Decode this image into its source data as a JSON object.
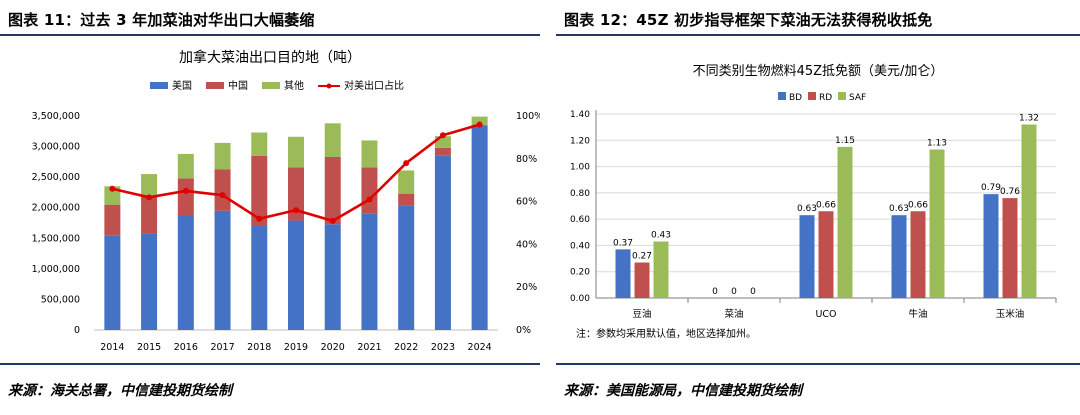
{
  "left": {
    "figure_title": "图表 11：过去 3 年加菜油对华出口大幅萎缩",
    "source": "来源：海关总署，中信建投期货绘制"
  },
  "right": {
    "figure_title": "图表 12：45Z 初步指导框架下菜油无法获得税收抵免",
    "source": "来源：美国能源局，中信建投期货绘制"
  },
  "colors": {
    "us": "#4472c4",
    "china": "#c0504d",
    "other": "#9bbb59",
    "ratio": "#e00000",
    "rule": "#1f3864"
  },
  "chart_data": [
    {
      "type": "bar",
      "stacked": true,
      "title": "加拿大菜油出口目的地（吨）",
      "categories": [
        "2014",
        "2015",
        "2016",
        "2017",
        "2018",
        "2019",
        "2020",
        "2021",
        "2022",
        "2023",
        "2024"
      ],
      "series": [
        {
          "name": "美国",
          "values": [
            1550000,
            1580000,
            1880000,
            1950000,
            1700000,
            1790000,
            1730000,
            1900000,
            2030000,
            2850000,
            3350000
          ]
        },
        {
          "name": "中国",
          "values": [
            500000,
            620000,
            600000,
            680000,
            1150000,
            870000,
            1100000,
            760000,
            200000,
            130000,
            0
          ]
        },
        {
          "name": "其他",
          "values": [
            300000,
            350000,
            400000,
            430000,
            380000,
            500000,
            550000,
            440000,
            380000,
            190000,
            140000
          ]
        }
      ],
      "line_series": {
        "name": "对美出口占比",
        "axis": "right",
        "values": [
          66,
          62,
          65,
          63,
          52,
          56,
          51,
          61,
          78,
          91,
          96
        ]
      },
      "yticks": [
        "0",
        "500,000",
        "1,000,000",
        "1,500,000",
        "2,000,000",
        "2,500,000",
        "3,000,000",
        "3,500,000"
      ],
      "y2ticks": [
        "0%",
        "20%",
        "40%",
        "60%",
        "80%",
        "100%"
      ],
      "ylim": [
        0,
        3500000
      ],
      "y2lim": [
        0,
        100
      ],
      "legend_position": "top"
    },
    {
      "type": "bar",
      "title": "不同类别生物燃料45Z抵免额（美元/加仑）",
      "categories": [
        "豆油",
        "菜油",
        "UCO",
        "牛油",
        "玉米油"
      ],
      "series": [
        {
          "name": "BD",
          "values": [
            0.37,
            0,
            0.63,
            0.63,
            0.79
          ]
        },
        {
          "name": "RD",
          "values": [
            0.27,
            0,
            0.66,
            0.66,
            0.76
          ]
        },
        {
          "name": "SAF",
          "values": [
            0.43,
            0,
            1.15,
            1.13,
            1.32
          ]
        }
      ],
      "data_labels": [
        [
          "0.37",
          "0",
          "0.63",
          "0.63",
          "0.79"
        ],
        [
          "0.27",
          "0",
          "0.66",
          "0.66",
          "0.76"
        ],
        [
          "0.43",
          "0",
          "1.15",
          "1.13",
          "1.32"
        ]
      ],
      "yticks": [
        "0.00",
        "0.20",
        "0.40",
        "0.60",
        "0.80",
        "1.00",
        "1.20",
        "1.40"
      ],
      "ylim": [
        0,
        1.4
      ],
      "legend_position": "top-left",
      "note": "注：参数均采用默认值，地区选择加州。"
    }
  ]
}
